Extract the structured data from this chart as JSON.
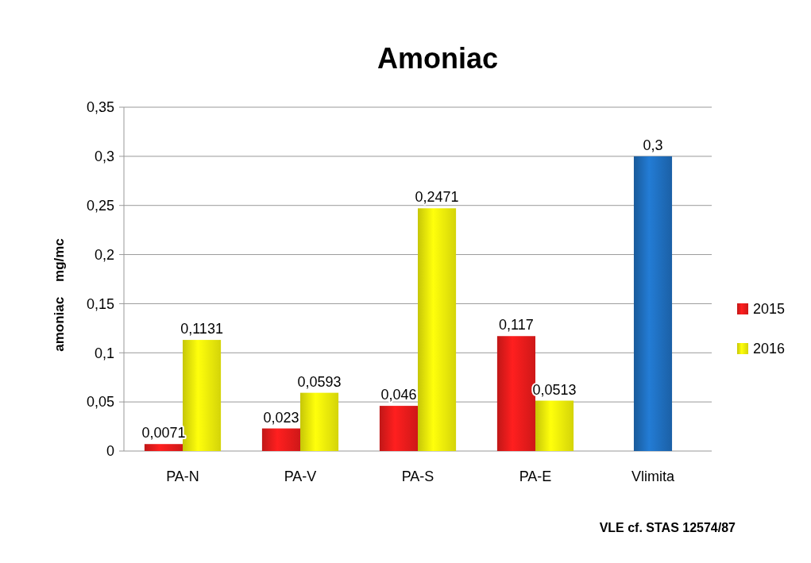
{
  "chart_data": {
    "type": "bar",
    "title": "Amoniac",
    "ylabel": "amoniac    mg/mc",
    "categories": [
      "PA-N",
      "PA-V",
      "PA-S",
      "PA-E",
      "Vlimita"
    ],
    "series": [
      {
        "name": "2015",
        "color": "#ee1c1c",
        "values": [
          0.0071,
          0.023,
          0.046,
          0.117,
          null
        ],
        "value_labels": [
          "0,0071",
          "0,023",
          "0,046",
          "0,117",
          null
        ]
      },
      {
        "name": "2016",
        "color": "#f5f50a",
        "values": [
          0.1131,
          0.0593,
          0.2471,
          0.0513,
          null
        ],
        "value_labels": [
          "0,1131",
          "0,0593",
          "0,2471",
          "0,0513",
          null
        ]
      },
      {
        "color": "#1f6fbf",
        "values": [
          null,
          null,
          null,
          null,
          0.3
        ],
        "value_labels": [
          null,
          null,
          null,
          null,
          "0,3"
        ]
      }
    ],
    "ylim": [
      0,
      0.35
    ],
    "yticks": [
      {
        "value": 0,
        "label": "0"
      },
      {
        "value": 0.05,
        "label": "0,05"
      },
      {
        "value": 0.1,
        "label": "0,1"
      },
      {
        "value": 0.15,
        "label": "0,15"
      },
      {
        "value": 0.2,
        "label": "0,2"
      },
      {
        "value": 0.25,
        "label": "0,25"
      },
      {
        "value": 0.3,
        "label": "0,3"
      },
      {
        "value": 0.35,
        "label": "0,35"
      }
    ],
    "grid": "y",
    "legend": "right",
    "annotations": [
      "VLE cf. STAS 12574/87"
    ]
  }
}
